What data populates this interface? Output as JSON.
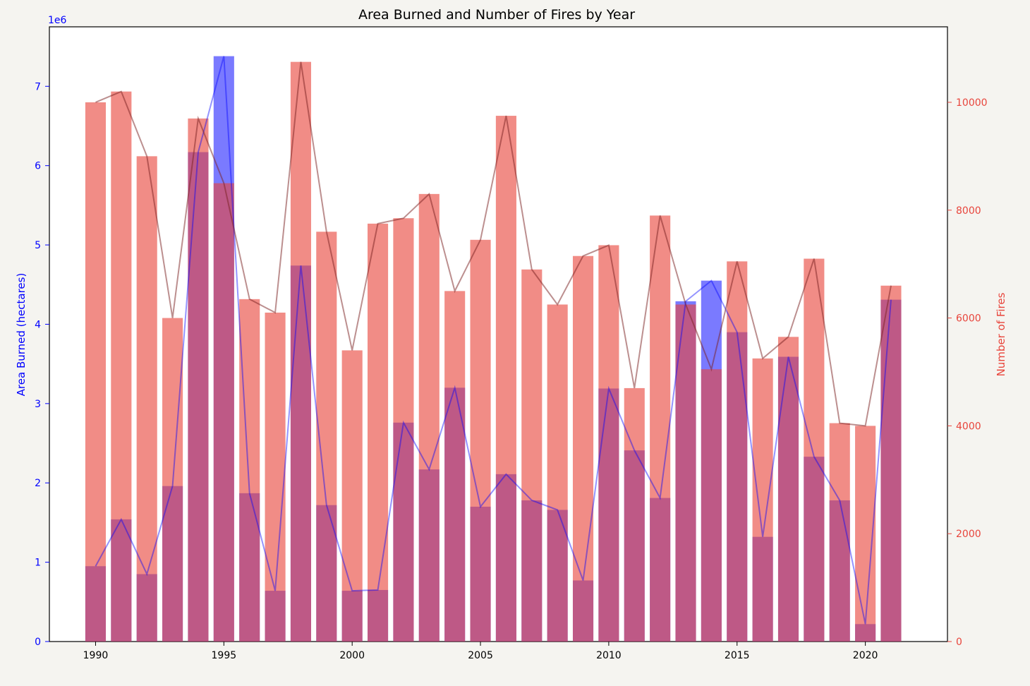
{
  "chart_data": {
    "type": "bar",
    "title": "Area Burned and Number of Fires by Year",
    "xlabel": "",
    "ylabel_left": "Area Burned (hectares)",
    "ylabel_right": "Number of Fires",
    "left_axis_multiplier": "1e6",
    "x": [
      1990,
      1991,
      1992,
      1993,
      1994,
      1995,
      1996,
      1997,
      1998,
      1999,
      2000,
      2001,
      2002,
      2003,
      2004,
      2005,
      2006,
      2007,
      2008,
      2009,
      2010,
      2011,
      2012,
      2013,
      2014,
      2015,
      2016,
      2017,
      2018,
      2019,
      2020,
      2021
    ],
    "x_ticks": [
      "1990",
      "1995",
      "2000",
      "2005",
      "2010",
      "2015",
      "2020"
    ],
    "xlim": [
      1988.2,
      2023.2
    ],
    "ylim_left": [
      0,
      7.75
    ],
    "ylim_right": [
      0,
      11400
    ],
    "y_ticks_left": [
      "0",
      "1",
      "2",
      "3",
      "4",
      "5",
      "6",
      "7"
    ],
    "y_ticks_right": [
      "0",
      "2000",
      "4000",
      "6000",
      "8000",
      "10000"
    ],
    "grid": false,
    "series": [
      {
        "axis": "left",
        "color": "#0000ff",
        "values": [
          0.95,
          1.54,
          0.85,
          1.96,
          6.17,
          7.38,
          1.87,
          0.64,
          4.74,
          1.72,
          0.64,
          0.65,
          2.76,
          2.17,
          3.2,
          1.7,
          2.11,
          1.78,
          1.66,
          0.77,
          3.19,
          2.41,
          1.81,
          4.29,
          4.55,
          3.9,
          1.32,
          3.59,
          2.33,
          1.78,
          0.22,
          4.31
        ]
      },
      {
        "axis": "right",
        "color": "#e8453c",
        "values": [
          10000,
          10200,
          9000,
          6000,
          9700,
          8500,
          6350,
          6100,
          10750,
          7600,
          5400,
          7750,
          7850,
          8300,
          6500,
          7450,
          9750,
          6900,
          6250,
          7150,
          7350,
          4700,
          7900,
          6250,
          5050,
          7050,
          5250,
          5650,
          7100,
          4050,
          4000,
          6600
        ]
      }
    ]
  }
}
